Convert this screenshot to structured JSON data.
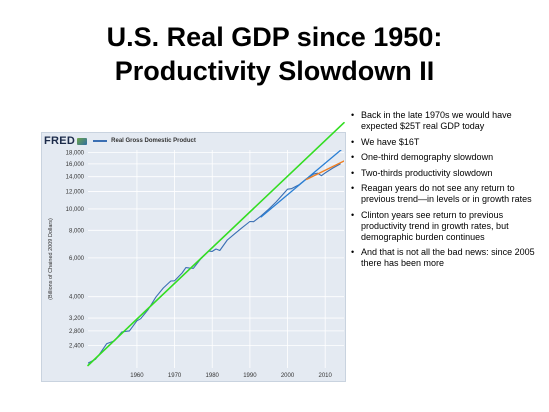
{
  "slide": {
    "title_line1": "U.S. Real GDP since 1950:",
    "title_line2": "Productivity Slowdown II"
  },
  "chart_header": {
    "logo_text": "FRED",
    "legend_label": "Real Gross Domestic Product"
  },
  "bullets": [
    "Back in the late 1970s we would have expected $25T real GDP today",
    "We have $16T",
    "One-third demography slowdown",
    "Two-thirds productivity slowdown",
    "Reagan years do not see any return to previous trend—in levels or in growth rates",
    "Clinton years see return to previous productivity trend in growth rates, but demographic burden continues",
    "And that is not all the bad news: since 2005 there has been more"
  ],
  "colors": {
    "gdp": "#3a6fb3",
    "trend_1950_1979": "#33dd22",
    "trend_clinton": "#2a7fd4",
    "trend_recent": "#f07f22",
    "grid": "#ffffff",
    "panel": "#e4eaf2"
  },
  "chart_data": {
    "type": "line",
    "ylabel": "(Billions of Chained 2009 Dollars)",
    "y_scale": "log",
    "ylim": [
      1900,
      18500
    ],
    "xlim": [
      1947,
      2015
    ],
    "y_ticks": [
      2400,
      2800,
      3200,
      4000,
      6000,
      8000,
      10000,
      12000,
      14000,
      16000,
      18000
    ],
    "y_tick_labels": [
      "2,400",
      "2,800",
      "3,200",
      "4,000",
      "6,000",
      "8,000",
      "10,000",
      "12,000",
      "14,000",
      "16,000",
      "18,000"
    ],
    "x_ticks": [
      1960,
      1970,
      1980,
      1990,
      2000,
      2010
    ],
    "x_tick_labels": [
      "1960",
      "1970",
      "1980",
      "1990",
      "2000",
      "2010"
    ],
    "grid": true,
    "series": [
      {
        "name": "Real Gross Domestic Product",
        "color": "#3a6fb3",
        "x": [
          1947,
          1949,
          1950,
          1952,
          1954,
          1956,
          1958,
          1960,
          1961,
          1963,
          1965,
          1967,
          1969,
          1970,
          1972,
          1973,
          1974,
          1975,
          1977,
          1979,
          1980,
          1981,
          1982,
          1984,
          1986,
          1988,
          1990,
          1991,
          1993,
          1995,
          1997,
          1999,
          2000,
          2001,
          2003,
          2005,
          2007,
          2008,
          2009,
          2010,
          2012,
          2014
        ],
        "y": [
          2000,
          2080,
          2190,
          2450,
          2520,
          2770,
          2800,
          3110,
          3180,
          3500,
          3980,
          4380,
          4710,
          4720,
          5120,
          5420,
          5390,
          5380,
          5950,
          6440,
          6420,
          6580,
          6480,
          7230,
          7720,
          8250,
          8770,
          8750,
          9310,
          9980,
          10760,
          11760,
          12290,
          12350,
          12850,
          13700,
          14420,
          14520,
          14140,
          14570,
          15320,
          15990
        ]
      },
      {
        "name": "",
        "color": "#33dd22",
        "x": [
          1947,
          2015
        ],
        "y": [
          1950,
          24600
        ]
      },
      {
        "name": "",
        "color": "#2a7fd4",
        "x": [
          1993,
          2015
        ],
        "y": [
          9200,
          19000
        ]
      },
      {
        "name": "",
        "color": "#f07f22",
        "x": [
          2005,
          2015
        ],
        "y": [
          13600,
          16500
        ]
      }
    ]
  }
}
